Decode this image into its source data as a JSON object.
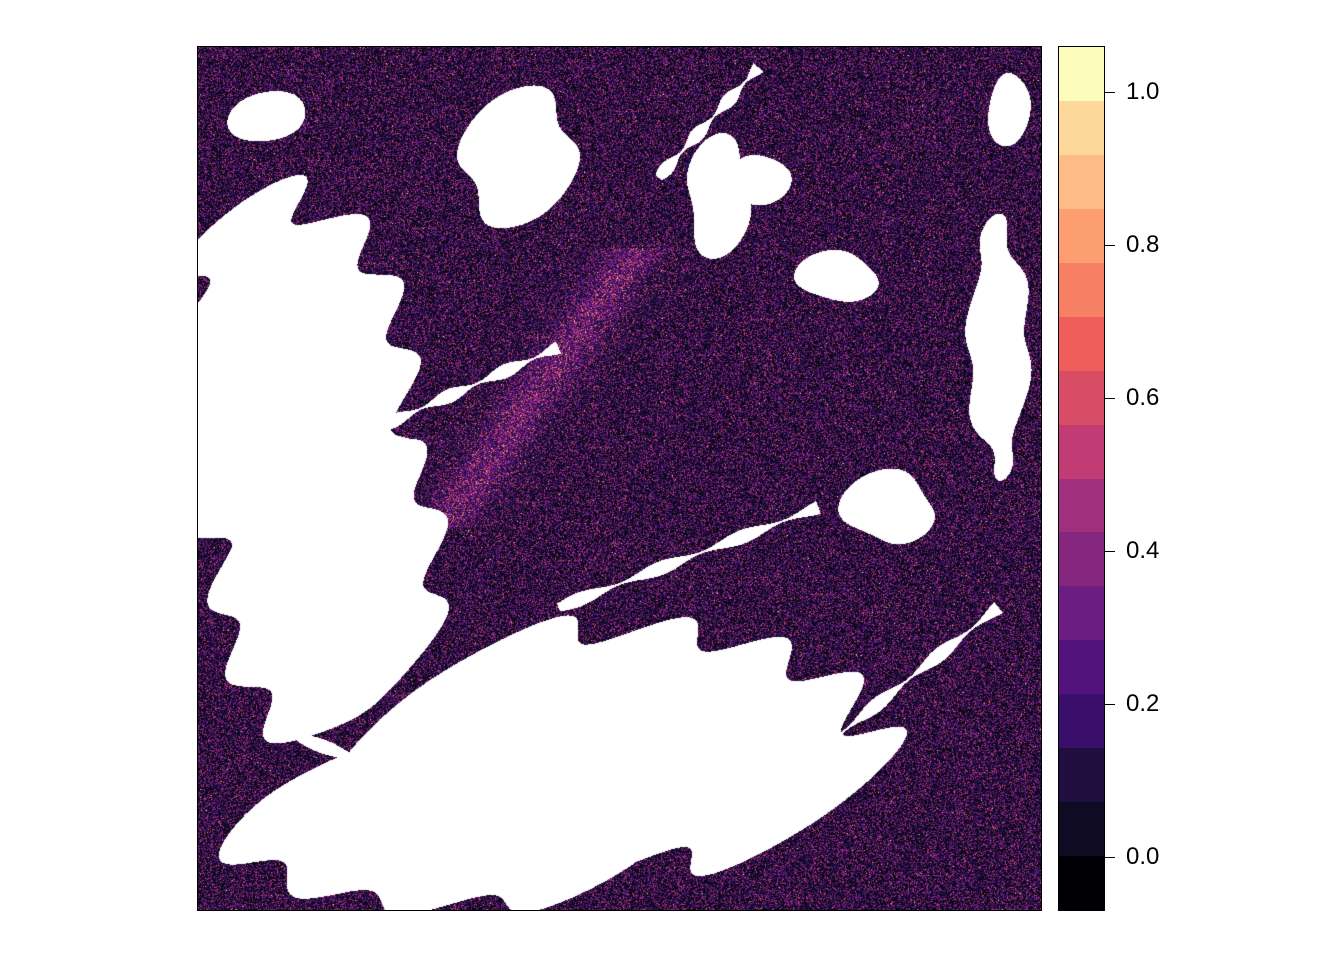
{
  "chart_data": {
    "type": "heatmap",
    "title": "",
    "xlabel": "",
    "ylabel": "",
    "value_range": [
      -0.07,
      1.06
    ],
    "legend": {
      "placement": "right",
      "breaks_count": 16,
      "colors": [
        "#000004",
        "#0f0b22",
        "#200e3f",
        "#3a0f6c",
        "#52137c",
        "#6b1d81",
        "#85267f",
        "#a02f7c",
        "#c13b75",
        "#d84c66",
        "#ef5e5b",
        "#f77f63",
        "#fc9e6f",
        "#fdbc86",
        "#fdd89b",
        "#fcfcbd"
      ],
      "ticks": [
        {
          "value": 0.0,
          "label": "0.0"
        },
        {
          "value": 0.2,
          "label": "0.2"
        },
        {
          "value": 0.4,
          "label": "0.4"
        },
        {
          "value": 0.6,
          "label": "0.6"
        },
        {
          "value": 0.8,
          "label": "0.8"
        },
        {
          "value": 1.0,
          "label": "1.0"
        }
      ]
    },
    "na_color": "#ffffff"
  }
}
